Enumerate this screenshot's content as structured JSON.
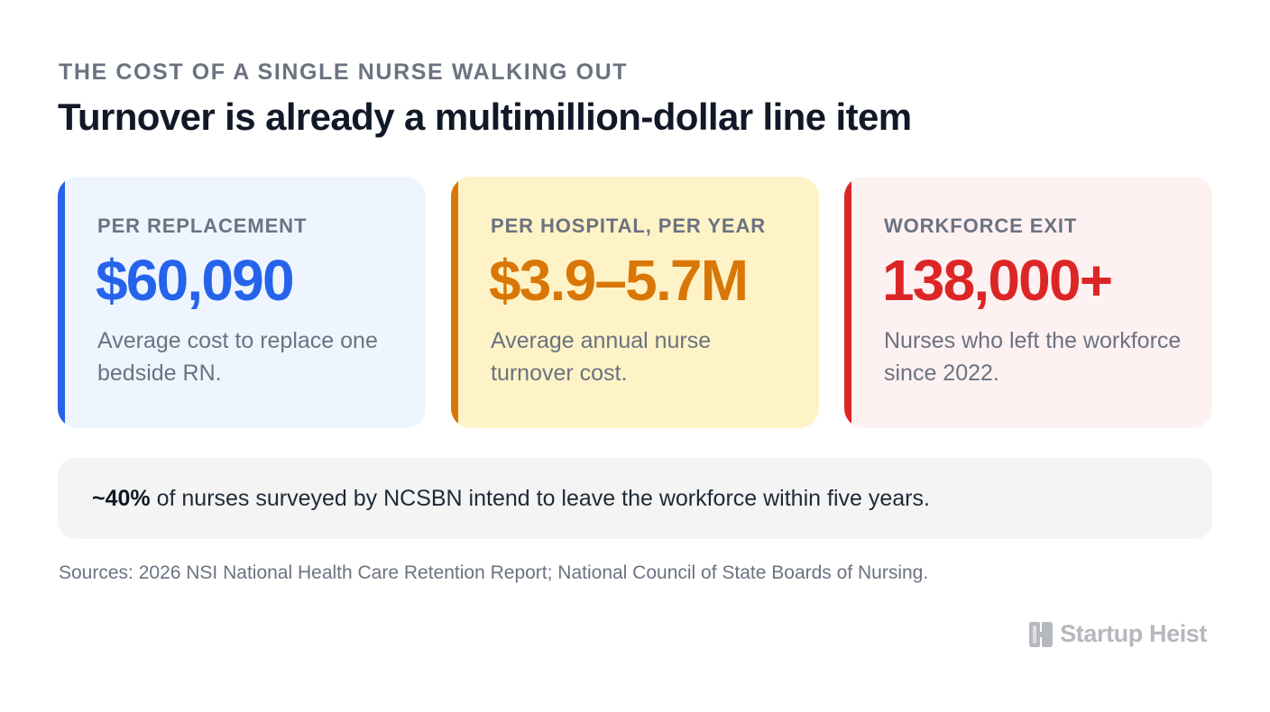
{
  "eyebrow": "THE COST OF A SINGLE NURSE WALKING OUT",
  "headline": "Turnover is already a multimillion-dollar line item",
  "cards": [
    {
      "label": "PER REPLACEMENT",
      "value": "$60,090",
      "description": "Average cost to replace one bedside RN.",
      "color": "#2563eb",
      "background": "#eef5ff"
    },
    {
      "label": "PER HOSPITAL, PER YEAR",
      "value": "$3.9–5.7M",
      "description": "Average annual nurse turnover cost.",
      "color": "#d97706",
      "background": "#fef3c7"
    },
    {
      "label": "WORKFORCE EXIT",
      "value": "138,000+",
      "description": "Nurses who left the workforce since 2022.",
      "color": "#dc2626",
      "background": "#fef1f2"
    }
  ],
  "callout": {
    "highlight": "~40%",
    "text": " of nurses surveyed by NCSBN intend to leave the workforce within five years."
  },
  "sources": "Sources: 2026 NSI National Health Care Retention Report; National Council of State Boards of Nursing.",
  "brand": {
    "name": "Startup Heist",
    "icon": "startup-heist-logo-icon",
    "color": "#b5b8bd"
  }
}
